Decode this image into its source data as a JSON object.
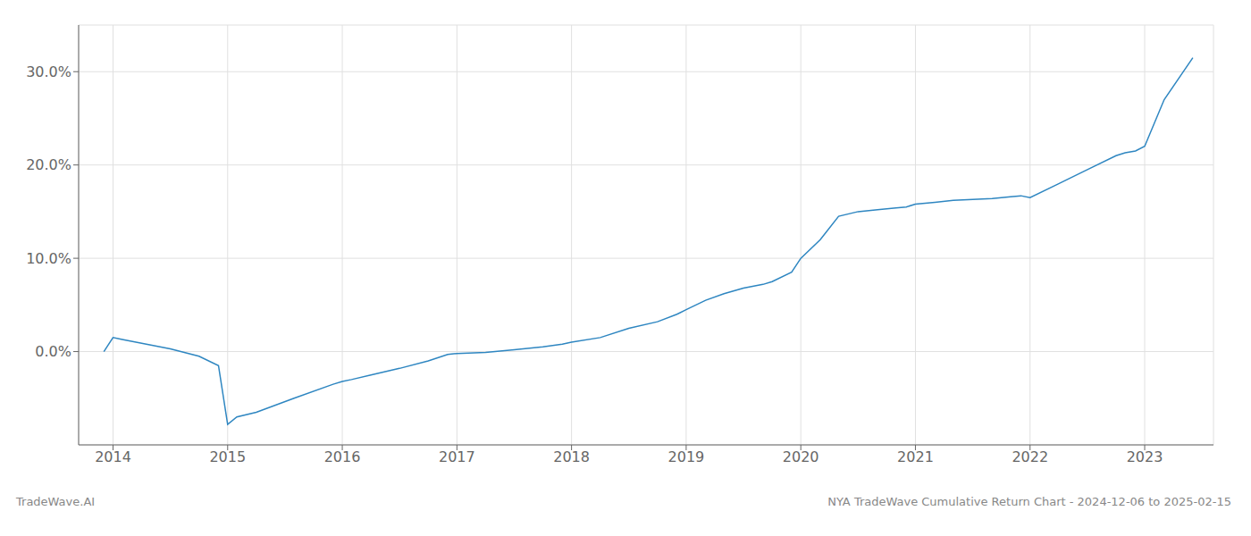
{
  "chart_data": {
    "type": "line",
    "title": "NYA TradeWave Cumulative Return Chart - 2024-12-06 to 2025-02-15",
    "annotations": [
      "TradeWave.AI"
    ],
    "x": [
      2013.92,
      2014.0,
      2014.08,
      2014.5,
      2014.75,
      2014.92,
      2015.0,
      2015.08,
      2015.25,
      2015.58,
      2015.92,
      2016.0,
      2016.08,
      2016.25,
      2016.5,
      2016.75,
      2016.92,
      2017.0,
      2017.25,
      2017.5,
      2017.75,
      2017.92,
      2018.0,
      2018.25,
      2018.5,
      2018.75,
      2018.92,
      2019.0,
      2019.17,
      2019.33,
      2019.5,
      2019.67,
      2019.75,
      2019.92,
      2020.0,
      2020.17,
      2020.33,
      2020.5,
      2020.67,
      2020.75,
      2020.83,
      2020.92,
      2021.0,
      2021.17,
      2021.33,
      2021.5,
      2021.67,
      2021.75,
      2021.83,
      2021.92,
      2022.0,
      2022.25,
      2022.5,
      2022.75,
      2022.83,
      2022.92,
      2023.0,
      2023.17,
      2023.42
    ],
    "values": [
      0.0,
      1.5,
      1.3,
      0.3,
      -0.5,
      -1.5,
      -7.8,
      -7.0,
      -6.5,
      -5.0,
      -3.5,
      -3.2,
      -3.0,
      -2.5,
      -1.8,
      -1.0,
      -0.3,
      -0.2,
      -0.1,
      0.2,
      0.5,
      0.8,
      1.0,
      1.5,
      2.5,
      3.2,
      4.0,
      4.5,
      5.5,
      6.2,
      6.8,
      7.2,
      7.5,
      8.5,
      10.0,
      12.0,
      14.5,
      15.0,
      15.2,
      15.3,
      15.4,
      15.5,
      15.8,
      16.0,
      16.2,
      16.3,
      16.4,
      16.5,
      16.6,
      16.7,
      16.5,
      18.0,
      19.5,
      21.0,
      21.3,
      21.5,
      22.0,
      27.0,
      31.5
    ],
    "color": "#2e86c1",
    "xlim": [
      2013.7,
      2023.6
    ],
    "ylim": [
      -10,
      35
    ],
    "xticks": [
      2014,
      2015,
      2016,
      2017,
      2018,
      2019,
      2020,
      2021,
      2022,
      2023
    ],
    "yticks": [
      {
        "value": 0.0,
        "label": "0.0%"
      },
      {
        "value": 10.0,
        "label": "10.0%"
      },
      {
        "value": 20.0,
        "label": "20.0%"
      },
      {
        "value": 30.0,
        "label": "30.0%"
      }
    ],
    "grid": true
  }
}
